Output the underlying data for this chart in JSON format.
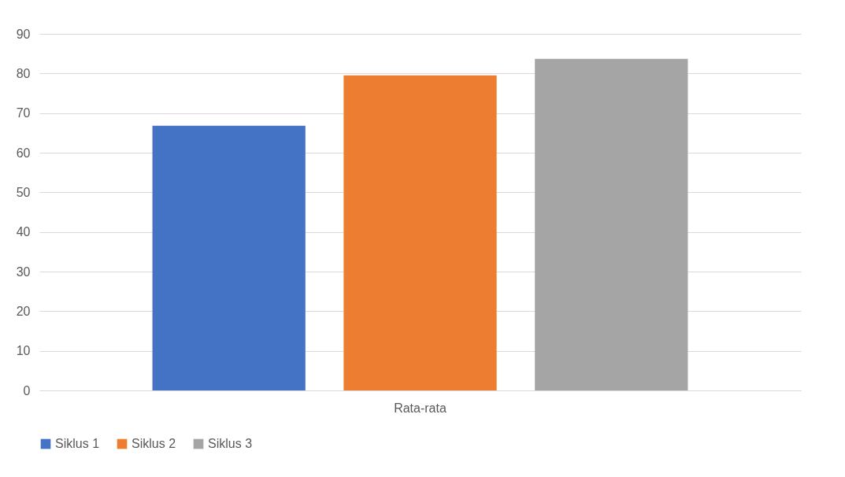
{
  "chart_data": {
    "type": "bar",
    "categories": [
      "Rata-rata"
    ],
    "series": [
      {
        "name": "Siklus 1",
        "color": "#4472c4",
        "values": [
          66.8
        ]
      },
      {
        "name": "Siklus 2",
        "color": "#ed7d31",
        "values": [
          79.5
        ]
      },
      {
        "name": "Siklus 3",
        "color": "#a5a5a5",
        "values": [
          83.7
        ]
      }
    ],
    "ylim": [
      0,
      90
    ],
    "yticks": [
      0,
      10,
      20,
      30,
      40,
      50,
      60,
      70,
      80,
      90
    ],
    "grid": "y",
    "legend": "bottom"
  }
}
